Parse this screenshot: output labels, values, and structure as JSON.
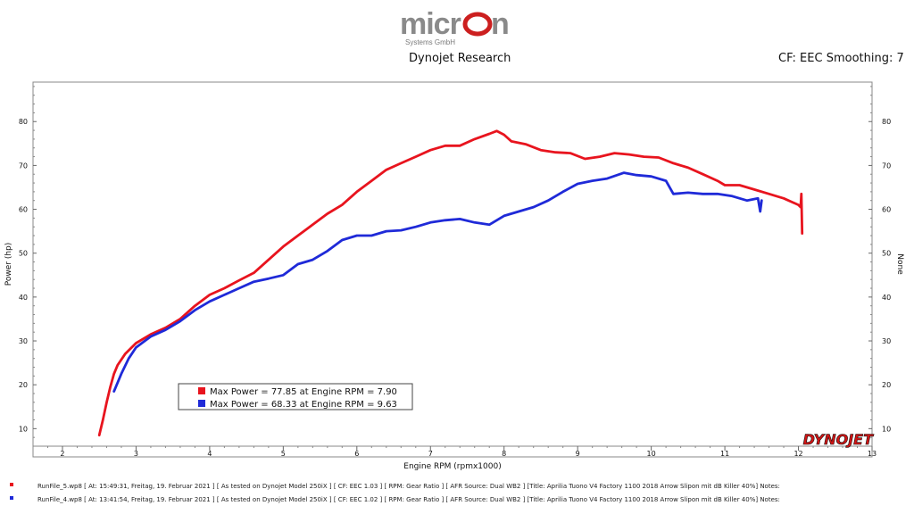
{
  "header": {
    "logo_word": "micron",
    "logo_sub": "Systems GmbH",
    "title": "Dynojet Research",
    "cf": "CF: EEC Smoothing: 7"
  },
  "footer": {
    "runs": [
      {
        "text": "RunFile_5.wp8  [ At:  15:49:31, Freitag, 19. Februar  2021  ]  [  As tested on Dynojet Model 250iX  ]  [  CF:  EEC 1.03  ]  [  RPM:  Gear Ratio  ]  [  AFR Source:  Dual WB2  ]  [Title:  Aprilia Tuono V4 Factory 1100 2018 Arrow Slipon mit dB Killer 40%]   Notes:",
        "color": "#e8141e"
      },
      {
        "text": "RunFile_4.wp8  [ At:  13:41:54, Freitag, 19. Februar  2021  ]  [  As tested on Dynojet Model 250iX  ]  [  CF:  EEC 1.02  ]  [  RPM:  Gear Ratio  ]  [  AFR Source:  Dual WB2  ]  [Title:  Aprilia Tuono V4 Factory 1100 2018 Arrow Slipon mit dB Killer 40%]   Notes:",
        "color": "#1f2ad8"
      }
    ]
  },
  "chart_data": {
    "type": "line",
    "xlabel": "Engine RPM (rpmx1000)",
    "ylabel": "Power (hp)",
    "y2label": "None",
    "xlim": [
      1.6,
      13
    ],
    "ylim": [
      6,
      89
    ],
    "x_ticks": [
      2,
      3,
      4,
      5,
      6,
      7,
      8,
      9,
      10,
      11,
      12,
      13
    ],
    "y_ticks": [
      10,
      20,
      30,
      40,
      50,
      60,
      70,
      80
    ],
    "brand": "DYNOJET",
    "legend_position": "bottom-center",
    "series": [
      {
        "name": "Max Power = 77.85 at Engine RPM = 7.90",
        "color": "#e8141e",
        "points": [
          [
            2.5,
            8.5
          ],
          [
            2.55,
            12
          ],
          [
            2.6,
            16
          ],
          [
            2.65,
            19.5
          ],
          [
            2.7,
            22.5
          ],
          [
            2.75,
            24.5
          ],
          [
            2.85,
            27
          ],
          [
            3.0,
            29.5
          ],
          [
            3.2,
            31.5
          ],
          [
            3.4,
            33
          ],
          [
            3.6,
            35
          ],
          [
            3.8,
            38
          ],
          [
            4.0,
            40.5
          ],
          [
            4.2,
            42
          ],
          [
            4.4,
            43.8
          ],
          [
            4.6,
            45.5
          ],
          [
            4.8,
            48.5
          ],
          [
            5.0,
            51.5
          ],
          [
            5.2,
            54
          ],
          [
            5.4,
            56.5
          ],
          [
            5.6,
            59
          ],
          [
            5.8,
            61
          ],
          [
            6.0,
            64
          ],
          [
            6.2,
            66.5
          ],
          [
            6.4,
            69
          ],
          [
            6.6,
            70.5
          ],
          [
            6.8,
            72
          ],
          [
            7.0,
            73.5
          ],
          [
            7.2,
            74.5
          ],
          [
            7.4,
            74.5
          ],
          [
            7.6,
            76
          ],
          [
            7.8,
            77.2
          ],
          [
            7.9,
            77.85
          ],
          [
            8.0,
            77
          ],
          [
            8.1,
            75.5
          ],
          [
            8.3,
            74.8
          ],
          [
            8.5,
            73.5
          ],
          [
            8.7,
            73
          ],
          [
            8.9,
            72.8
          ],
          [
            9.1,
            71.5
          ],
          [
            9.3,
            72
          ],
          [
            9.5,
            72.8
          ],
          [
            9.7,
            72.5
          ],
          [
            9.9,
            72
          ],
          [
            10.1,
            71.8
          ],
          [
            10.3,
            70.5
          ],
          [
            10.5,
            69.5
          ],
          [
            10.7,
            68
          ],
          [
            10.9,
            66.5
          ],
          [
            11.0,
            65.5
          ],
          [
            11.2,
            65.5
          ],
          [
            11.4,
            64.5
          ],
          [
            11.6,
            63.5
          ],
          [
            11.8,
            62.5
          ],
          [
            12.0,
            61
          ],
          [
            12.03,
            60.5
          ],
          [
            12.04,
            63.5
          ],
          [
            12.05,
            54.5
          ]
        ]
      },
      {
        "name": "Max Power = 68.33 at Engine RPM = 9.63",
        "color": "#1f2ad8",
        "points": [
          [
            2.7,
            18.5
          ],
          [
            2.8,
            22.5
          ],
          [
            2.9,
            26
          ],
          [
            3.0,
            28.5
          ],
          [
            3.2,
            31
          ],
          [
            3.4,
            32.5
          ],
          [
            3.6,
            34.5
          ],
          [
            3.8,
            37
          ],
          [
            4.0,
            39
          ],
          [
            4.2,
            40.5
          ],
          [
            4.4,
            42
          ],
          [
            4.6,
            43.5
          ],
          [
            4.8,
            44.2
          ],
          [
            5.0,
            45
          ],
          [
            5.2,
            47.5
          ],
          [
            5.4,
            48.5
          ],
          [
            5.6,
            50.5
          ],
          [
            5.8,
            53
          ],
          [
            6.0,
            54
          ],
          [
            6.2,
            54
          ],
          [
            6.4,
            55
          ],
          [
            6.6,
            55.2
          ],
          [
            6.8,
            56
          ],
          [
            7.0,
            57
          ],
          [
            7.2,
            57.5
          ],
          [
            7.4,
            57.8
          ],
          [
            7.6,
            57
          ],
          [
            7.8,
            56.5
          ],
          [
            8.0,
            58.5
          ],
          [
            8.2,
            59.5
          ],
          [
            8.4,
            60.5
          ],
          [
            8.6,
            62
          ],
          [
            8.8,
            64
          ],
          [
            9.0,
            65.8
          ],
          [
            9.2,
            66.5
          ],
          [
            9.4,
            67
          ],
          [
            9.63,
            68.33
          ],
          [
            9.8,
            67.8
          ],
          [
            10.0,
            67.5
          ],
          [
            10.2,
            66.5
          ],
          [
            10.3,
            63.5
          ],
          [
            10.5,
            63.8
          ],
          [
            10.7,
            63.5
          ],
          [
            10.9,
            63.5
          ],
          [
            11.1,
            63
          ],
          [
            11.3,
            62
          ],
          [
            11.45,
            62.5
          ],
          [
            11.48,
            59.5
          ],
          [
            11.5,
            62
          ]
        ]
      }
    ]
  }
}
